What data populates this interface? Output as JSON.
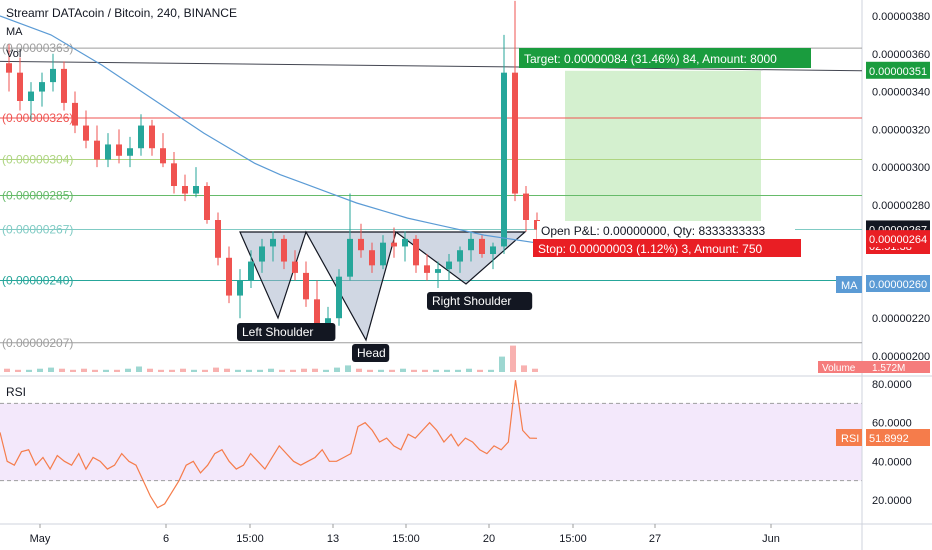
{
  "header": {
    "title": "Streamr DATAcoin / Bitcoin, 240, BINANCE",
    "ma_label": "MA",
    "vol_label": "Vol"
  },
  "colors": {
    "up": "#26a69a",
    "down": "#ef5350",
    "ma": "#5b9bd5",
    "rsi": "#f57c4b",
    "rsi_band": "#f3e8fb",
    "target_fill": "#d4f0cf",
    "target_tag": "#1a9c3e",
    "stop_tag": "#e91e24",
    "pattern_fill": "#a9b6cc"
  },
  "annotations": {
    "target": "Target: 0.00000084 (31.46%) 84, Amount: 8000",
    "open_pnl": "Open P&L: 0.00000000, Qty: 8333333333",
    "stop": "Stop: 0.00000003 (1.12%) 3, Amount: 750",
    "left_shoulder": "Left Shoulder",
    "head": "Head",
    "right_shoulder": "Right Shoulder"
  },
  "price_tags": {
    "upper_line": "0.00000351",
    "last": "0.00000267",
    "countdown": "02:51:38",
    "stop_level": "0.00000264",
    "ma_label": "MA",
    "ma_value": "0.00000260",
    "volume_label": "Volume",
    "volume_value": "1.572M",
    "rsi_label": "RSI",
    "rsi_value": "51.8992"
  },
  "rsi_panel": {
    "label": "RSI"
  },
  "chart_data": [
    {
      "type": "candlestick",
      "title": "Streamr DATAcoin / Bitcoin, 240, BINANCE",
      "ylim": [
        1.95e-06,
        3.9e-06
      ],
      "y_ticks": [
        "0.00000380",
        "0.00000360",
        "0.00000340",
        "0.00000320",
        "0.00000300",
        "0.00000280",
        "0.00000260",
        "0.00000240",
        "0.00000220",
        "0.00000200"
      ],
      "x_ticks": [
        "May",
        "6",
        "15:00",
        "13",
        "15:00",
        "20",
        "15:00",
        "27",
        "Jun"
      ],
      "horizontal_levels": [
        {
          "value": 3.63e-06,
          "label": "(0.00000363)",
          "color": "#9e9e9e"
        },
        {
          "value": 3.26e-06,
          "label": "(0.00000326)",
          "color": "#ef5350"
        },
        {
          "value": 3.04e-06,
          "label": "(0.00000304)",
          "color": "#aed581"
        },
        {
          "value": 2.85e-06,
          "label": "(0.00000285)",
          "color": "#66bb6a"
        },
        {
          "value": 2.67e-06,
          "label": "(0.00000267)",
          "color": "#80cbc4"
        },
        {
          "value": 2.4e-06,
          "label": "(0.00000240)",
          "color": "#26a69a"
        },
        {
          "value": 2.07e-06,
          "label": "(0.00000207)",
          "color": "#9e9e9e"
        }
      ],
      "candles": [
        [
          3.55e-06,
          3.65e-06,
          3.4e-06,
          3.5e-06
        ],
        [
          3.5e-06,
          3.58e-06,
          3.3e-06,
          3.35e-06
        ],
        [
          3.35e-06,
          3.45e-06,
          3.25e-06,
          3.4e-06
        ],
        [
          3.4e-06,
          3.5e-06,
          3.32e-06,
          3.45e-06
        ],
        [
          3.45e-06,
          3.6e-06,
          3.4e-06,
          3.52e-06
        ],
        [
          3.52e-06,
          3.56e-06,
          3.3e-06,
          3.34e-06
        ],
        [
          3.34e-06,
          3.4e-06,
          3.18e-06,
          3.22e-06
        ],
        [
          3.22e-06,
          3.3e-06,
          3.1e-06,
          3.14e-06
        ],
        [
          3.14e-06,
          3.22e-06,
          3e-06,
          3.04e-06
        ],
        [
          3.04e-06,
          3.18e-06,
          3e-06,
          3.12e-06
        ],
        [
          3.12e-06,
          3.2e-06,
          3.02e-06,
          3.06e-06
        ],
        [
          3.06e-06,
          3.16e-06,
          3e-06,
          3.1e-06
        ],
        [
          3.1e-06,
          3.28e-06,
          3.06e-06,
          3.22e-06
        ],
        [
          3.22e-06,
          3.25e-06,
          3.06e-06,
          3.1e-06
        ],
        [
          3.1e-06,
          3.18e-06,
          3e-06,
          3.02e-06
        ],
        [
          3.02e-06,
          3.08e-06,
          2.86e-06,
          2.9e-06
        ],
        [
          2.9e-06,
          2.96e-06,
          2.82e-06,
          2.86e-06
        ],
        [
          2.86e-06,
          3e-06,
          2.84e-06,
          2.9e-06
        ],
        [
          2.9e-06,
          2.92e-06,
          2.7e-06,
          2.72e-06
        ],
        [
          2.72e-06,
          2.76e-06,
          2.48e-06,
          2.52e-06
        ],
        [
          2.52e-06,
          2.58e-06,
          2.28e-06,
          2.32e-06
        ],
        [
          2.32e-06,
          2.46e-06,
          2.2e-06,
          2.4e-06
        ],
        [
          2.4e-06,
          2.56e-06,
          2.36e-06,
          2.5e-06
        ],
        [
          2.5e-06,
          2.62e-06,
          2.44e-06,
          2.58e-06
        ],
        [
          2.58e-06,
          2.66e-06,
          2.5e-06,
          2.62e-06
        ],
        [
          2.62e-06,
          2.64e-06,
          2.46e-06,
          2.5e-06
        ],
        [
          2.5e-06,
          2.56e-06,
          2.4e-06,
          2.44e-06
        ],
        [
          2.44e-06,
          2.5e-06,
          2.26e-06,
          2.3e-06
        ],
        [
          2.3e-06,
          2.4e-06,
          2.1e-06,
          2.14e-06
        ],
        [
          2.14e-06,
          2.26e-06,
          2.08e-06,
          2.2e-06
        ],
        [
          2.2e-06,
          2.46e-06,
          2.16e-06,
          2.42e-06
        ],
        [
          2.42e-06,
          2.86e-06,
          2.4e-06,
          2.62e-06
        ],
        [
          2.62e-06,
          2.7e-06,
          2.52e-06,
          2.56e-06
        ],
        [
          2.56e-06,
          2.6e-06,
          2.44e-06,
          2.48e-06
        ],
        [
          2.48e-06,
          2.64e-06,
          2.46e-06,
          2.6e-06
        ],
        [
          2.6e-06,
          2.68e-06,
          2.52e-06,
          2.58e-06
        ],
        [
          2.58e-06,
          2.66e-06,
          2.5e-06,
          2.62e-06
        ],
        [
          2.62e-06,
          2.64e-06,
          2.44e-06,
          2.48e-06
        ],
        [
          2.48e-06,
          2.54e-06,
          2.4e-06,
          2.44e-06
        ],
        [
          2.44e-06,
          2.5e-06,
          2.36e-06,
          2.46e-06
        ],
        [
          2.46e-06,
          2.54e-06,
          2.4e-06,
          2.5e-06
        ],
        [
          2.5e-06,
          2.58e-06,
          2.44e-06,
          2.56e-06
        ],
        [
          2.56e-06,
          2.66e-06,
          2.5e-06,
          2.62e-06
        ],
        [
          2.62e-06,
          2.64e-06,
          2.52e-06,
          2.54e-06
        ],
        [
          2.54e-06,
          2.6e-06,
          2.46e-06,
          2.58e-06
        ],
        [
          2.58e-06,
          3.7e-06,
          2.54e-06,
          3.5e-06
        ],
        [
          3.5e-06,
          3.88e-06,
          2.82e-06,
          2.86e-06
        ],
        [
          2.86e-06,
          2.9e-06,
          2.66e-06,
          2.72e-06
        ],
        [
          2.72e-06,
          2.76e-06,
          2.62e-06,
          2.67e-06
        ]
      ],
      "ma_series": [
        3.8e-06,
        3.75e-06,
        3.7e-06,
        3.62e-06,
        3.54e-06,
        3.45e-06,
        3.36e-06,
        3.27e-06,
        3.18e-06,
        3.1e-06,
        3.02e-06,
        2.96e-06,
        2.91e-06,
        2.86e-06,
        2.81e-06,
        2.77e-06,
        2.73e-06,
        2.7e-06,
        2.67e-06,
        2.64e-06,
        2.62e-06,
        2.6e-06
      ],
      "volume": [
        3,
        2,
        2,
        3,
        4,
        3,
        2,
        3,
        2,
        2,
        2,
        3,
        5,
        3,
        2,
        2,
        3,
        2,
        2,
        4,
        3,
        2,
        2,
        2,
        3,
        2,
        2,
        3,
        3,
        2,
        4,
        6,
        3,
        2,
        2,
        2,
        3,
        2,
        2,
        2,
        2,
        2,
        3,
        2,
        2,
        14,
        24,
        6,
        3
      ],
      "position": {
        "entry": 2.67e-06,
        "target": 3.51e-06,
        "stop": 2.64e-06
      }
    },
    {
      "type": "line",
      "title": "RSI",
      "ylim": [
        10,
        85
      ],
      "y_ticks": [
        "80.0000",
        "60.0000",
        "40.0000",
        "20.0000"
      ],
      "bands": [
        30,
        70
      ],
      "values": [
        55,
        40,
        38,
        45,
        46,
        38,
        42,
        36,
        43,
        40,
        38,
        44,
        36,
        42,
        40,
        36,
        38,
        44,
        40,
        38,
        30,
        22,
        16,
        18,
        24,
        30,
        38,
        40,
        34,
        38,
        44,
        46,
        40,
        36,
        38,
        44,
        40,
        36,
        42,
        48,
        44,
        40,
        38,
        40,
        42,
        46,
        40,
        40,
        42,
        44,
        58,
        60,
        56,
        50,
        52,
        48,
        46,
        54,
        52,
        56,
        60,
        56,
        50,
        54,
        48,
        52,
        50,
        46,
        44,
        48,
        46,
        50,
        82,
        56,
        52,
        51.9
      ]
    }
  ]
}
